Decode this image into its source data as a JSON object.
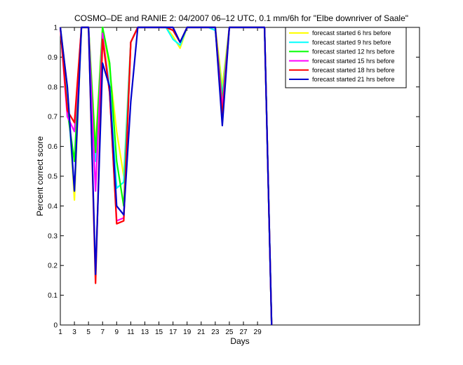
{
  "chart_data": {
    "type": "line",
    "title": "COSMO–DE and RANIE 2: 04/2007 06–12 UTC, 0.1 mm/6h for \"Elbe downriver of Saale\"",
    "xlabel": "Days",
    "ylabel": "Percent correct score",
    "xlim": [
      1,
      52
    ],
    "ylim": [
      0,
      1
    ],
    "xticks": [
      1,
      3,
      5,
      7,
      9,
      11,
      13,
      15,
      17,
      19,
      21,
      23,
      25,
      27,
      29
    ],
    "yticks": [
      0,
      0.1,
      0.2,
      0.3,
      0.4,
      0.5,
      0.6,
      0.7,
      0.8,
      0.9,
      1
    ],
    "yticklabels": [
      "0",
      "0.1",
      "0.2",
      "0.3",
      "0.4",
      "0.5",
      "0.6",
      "0.7",
      "0.8",
      "0.9",
      "1"
    ],
    "legend_position": "top-right",
    "series": [
      {
        "name": "forecast started 6 hrs before",
        "color": "#ffff00",
        "points": [
          [
            1,
            1
          ],
          [
            2,
            0.8
          ],
          [
            3,
            0.42
          ],
          [
            4,
            1
          ],
          [
            5,
            1
          ],
          [
            6,
            0.6
          ],
          [
            7,
            1
          ],
          [
            8,
            0.86
          ],
          [
            9,
            0.65
          ],
          [
            10,
            0.5
          ],
          [
            11,
            0.95
          ],
          [
            12,
            1
          ],
          [
            13,
            1
          ],
          [
            14,
            1
          ],
          [
            15,
            1
          ],
          [
            16,
            1
          ],
          [
            17,
            0.97
          ],
          [
            18,
            0.93
          ],
          [
            19,
            1
          ],
          [
            20,
            1
          ],
          [
            21,
            1
          ],
          [
            22,
            1
          ],
          [
            23,
            1
          ],
          [
            24,
            0.8
          ],
          [
            25,
            1
          ],
          [
            26,
            1
          ],
          [
            27,
            1
          ],
          [
            28,
            1
          ],
          [
            29,
            1
          ],
          [
            30,
            1
          ],
          [
            31,
            0
          ]
        ]
      },
      {
        "name": "forecast started 9 hrs before",
        "color": "#00ffff",
        "points": [
          [
            1,
            1
          ],
          [
            2,
            0.78
          ],
          [
            3,
            0.45
          ],
          [
            4,
            1
          ],
          [
            5,
            1
          ],
          [
            6,
            0.55
          ],
          [
            7,
            0.97
          ],
          [
            8,
            0.8
          ],
          [
            9,
            0.46
          ],
          [
            10,
            0.48
          ],
          [
            11,
            0.95
          ],
          [
            12,
            1
          ],
          [
            13,
            1
          ],
          [
            14,
            1
          ],
          [
            15,
            1
          ],
          [
            16,
            1
          ],
          [
            17,
            0.96
          ],
          [
            18,
            0.94
          ],
          [
            19,
            1
          ],
          [
            20,
            1
          ],
          [
            21,
            1
          ],
          [
            22,
            1
          ],
          [
            23,
            0.99
          ],
          [
            24,
            0.77
          ],
          [
            25,
            1
          ],
          [
            26,
            1
          ],
          [
            27,
            1
          ],
          [
            28,
            1
          ],
          [
            29,
            1
          ],
          [
            30,
            1
          ],
          [
            31,
            0
          ]
        ]
      },
      {
        "name": "forecast started 12 hrs before",
        "color": "#00ff00",
        "points": [
          [
            1,
            1
          ],
          [
            2,
            0.72
          ],
          [
            3,
            0.55
          ],
          [
            4,
            1
          ],
          [
            5,
            1
          ],
          [
            6,
            0.58
          ],
          [
            7,
            1
          ],
          [
            8,
            0.88
          ],
          [
            9,
            0.55
          ],
          [
            10,
            0.4
          ],
          [
            11,
            0.95
          ],
          [
            12,
            1
          ],
          [
            13,
            1
          ],
          [
            14,
            1
          ],
          [
            15,
            1
          ],
          [
            16,
            1
          ],
          [
            17,
            1
          ],
          [
            18,
            0.95
          ],
          [
            19,
            1
          ],
          [
            20,
            1
          ],
          [
            21,
            1
          ],
          [
            22,
            1
          ],
          [
            23,
            1
          ],
          [
            24,
            0.75
          ],
          [
            25,
            1
          ],
          [
            26,
            1
          ],
          [
            27,
            1
          ],
          [
            28,
            1
          ],
          [
            29,
            1
          ],
          [
            30,
            1
          ],
          [
            31,
            0
          ]
        ]
      },
      {
        "name": "forecast started 15 hrs before",
        "color": "#ff00ff",
        "points": [
          [
            1,
            1
          ],
          [
            2,
            0.7
          ],
          [
            3,
            0.65
          ],
          [
            4,
            1
          ],
          [
            5,
            1
          ],
          [
            6,
            0.45
          ],
          [
            7,
            0.98
          ],
          [
            8,
            0.78
          ],
          [
            9,
            0.35
          ],
          [
            10,
            0.36
          ],
          [
            11,
            0.95
          ],
          [
            12,
            1
          ],
          [
            13,
            1
          ],
          [
            14,
            1
          ],
          [
            15,
            1
          ],
          [
            16,
            1
          ],
          [
            17,
            1
          ],
          [
            18,
            0.95
          ],
          [
            19,
            1
          ],
          [
            20,
            1
          ],
          [
            21,
            1
          ],
          [
            22,
            1
          ],
          [
            23,
            1
          ],
          [
            24,
            0.73
          ],
          [
            25,
            1
          ],
          [
            26,
            1
          ],
          [
            27,
            1
          ],
          [
            28,
            1
          ],
          [
            29,
            1
          ],
          [
            30,
            1
          ],
          [
            31,
            0
          ]
        ]
      },
      {
        "name": "forecast started 18 hrs before",
        "color": "#ff0000",
        "points": [
          [
            1,
            1
          ],
          [
            2,
            0.72
          ],
          [
            3,
            0.68
          ],
          [
            4,
            1
          ],
          [
            5,
            1
          ],
          [
            6,
            0.14
          ],
          [
            7,
            0.96
          ],
          [
            8,
            0.78
          ],
          [
            9,
            0.34
          ],
          [
            10,
            0.35
          ],
          [
            11,
            0.95
          ],
          [
            12,
            1
          ],
          [
            13,
            1
          ],
          [
            14,
            1
          ],
          [
            15,
            1
          ],
          [
            16,
            1
          ],
          [
            17,
            0.99
          ],
          [
            18,
            0.95
          ],
          [
            19,
            1
          ],
          [
            20,
            1
          ],
          [
            21,
            1
          ],
          [
            22,
            1
          ],
          [
            23,
            1
          ],
          [
            24,
            0.7
          ],
          [
            25,
            1
          ],
          [
            26,
            1
          ],
          [
            27,
            1
          ],
          [
            28,
            1
          ],
          [
            29,
            1
          ],
          [
            30,
            1
          ],
          [
            31,
            0
          ]
        ]
      },
      {
        "name": "forecast started 21 hrs before",
        "color": "#0000cc",
        "points": [
          [
            1,
            1
          ],
          [
            2,
            0.8
          ],
          [
            3,
            0.45
          ],
          [
            4,
            1
          ],
          [
            5,
            1
          ],
          [
            6,
            0.17
          ],
          [
            7,
            0.88
          ],
          [
            8,
            0.8
          ],
          [
            9,
            0.4
          ],
          [
            10,
            0.37
          ],
          [
            11,
            0.75
          ],
          [
            12,
            1
          ],
          [
            13,
            1
          ],
          [
            14,
            1
          ],
          [
            15,
            1
          ],
          [
            16,
            1
          ],
          [
            17,
            1
          ],
          [
            18,
            0.95
          ],
          [
            19,
            1
          ],
          [
            20,
            1
          ],
          [
            21,
            1
          ],
          [
            22,
            1
          ],
          [
            23,
            1
          ],
          [
            24,
            0.67
          ],
          [
            25,
            1
          ],
          [
            26,
            1
          ],
          [
            27,
            1
          ],
          [
            28,
            1
          ],
          [
            29,
            1
          ],
          [
            30,
            1
          ],
          [
            31,
            0
          ]
        ]
      }
    ]
  }
}
